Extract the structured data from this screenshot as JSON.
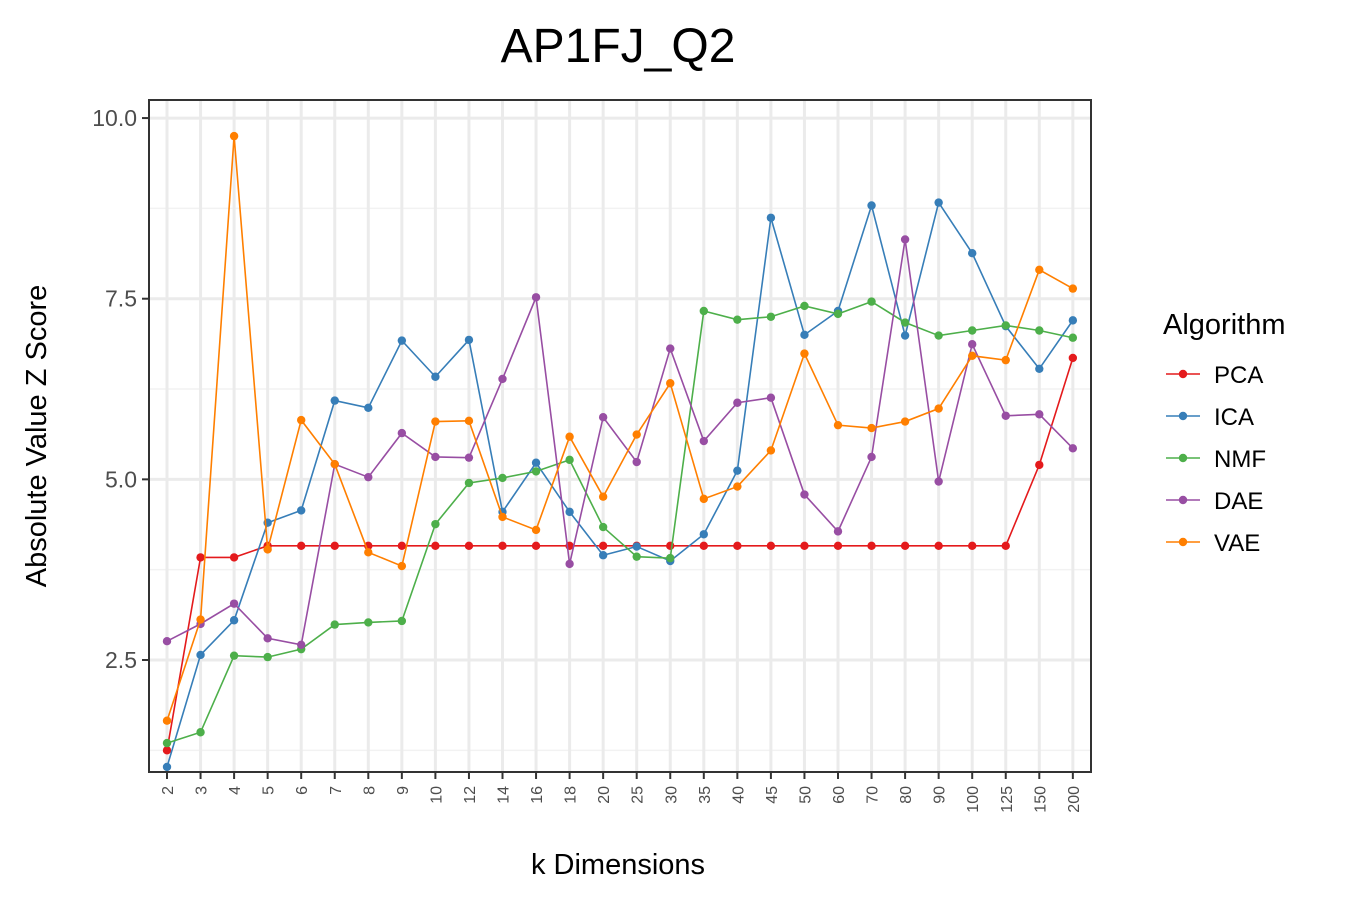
{
  "chart_data": {
    "type": "line",
    "title": "AP1FJ_Q2",
    "xlabel": "k Dimensions",
    "ylabel": "Absolute Value Z Score",
    "ylim": [
      0.95,
      10.25
    ],
    "yticks": [
      2.5,
      5.0,
      7.5,
      10.0
    ],
    "ytick_labels": [
      "2.5",
      "5.0",
      "7.5",
      "10.0"
    ],
    "grid": true,
    "legend_title": "Algorithm",
    "legend_position": "right",
    "categories": [
      "2",
      "3",
      "4",
      "5",
      "6",
      "7",
      "8",
      "9",
      "10",
      "12",
      "14",
      "16",
      "18",
      "20",
      "25",
      "30",
      "35",
      "40",
      "45",
      "50",
      "60",
      "70",
      "80",
      "90",
      "100",
      "125",
      "150",
      "200"
    ],
    "series": [
      {
        "name": "PCA",
        "color": "#e41a1c",
        "values": [
          1.25,
          3.92,
          3.92,
          4.08,
          4.08,
          4.08,
          4.08,
          4.08,
          4.08,
          4.08,
          4.08,
          4.08,
          4.08,
          4.08,
          4.08,
          4.08,
          4.08,
          4.08,
          4.08,
          4.08,
          4.08,
          4.08,
          4.08,
          4.08,
          4.08,
          4.08,
          5.2,
          6.68
        ]
      },
      {
        "name": "ICA",
        "color": "#377eb8",
        "values": [
          1.02,
          2.57,
          3.05,
          4.4,
          4.57,
          6.09,
          5.99,
          6.92,
          6.42,
          6.93,
          4.55,
          5.23,
          4.55,
          3.95,
          4.07,
          3.87,
          4.24,
          5.12,
          8.62,
          7.0,
          7.33,
          8.79,
          6.99,
          8.83,
          8.13,
          7.12,
          6.53,
          7.2
        ]
      },
      {
        "name": "NMF",
        "color": "#4daf4a",
        "values": [
          1.35,
          1.5,
          2.56,
          2.54,
          2.65,
          2.99,
          3.02,
          3.04,
          4.38,
          4.95,
          5.02,
          5.11,
          5.27,
          4.34,
          3.93,
          3.91,
          7.33,
          7.21,
          7.25,
          7.4,
          7.29,
          7.46,
          7.17,
          6.99,
          7.06,
          7.13,
          7.06,
          6.96
        ]
      },
      {
        "name": "DAE",
        "color": "#984ea3",
        "values": [
          2.76,
          3.0,
          3.28,
          2.8,
          2.71,
          5.21,
          5.03,
          5.64,
          5.31,
          5.3,
          6.39,
          7.52,
          3.83,
          5.86,
          5.24,
          6.81,
          5.53,
          6.06,
          6.13,
          4.79,
          4.28,
          5.31,
          8.32,
          4.97,
          6.87,
          5.88,
          5.9,
          5.43
        ]
      },
      {
        "name": "VAE",
        "color": "#ff7f00",
        "values": [
          1.66,
          3.06,
          9.75,
          4.03,
          5.82,
          5.21,
          3.99,
          3.8,
          5.8,
          5.81,
          4.48,
          4.3,
          5.59,
          4.76,
          5.62,
          6.33,
          4.73,
          4.9,
          5.4,
          6.74,
          5.75,
          5.71,
          5.8,
          5.98,
          6.71,
          6.65,
          7.9,
          7.64
        ]
      }
    ]
  }
}
